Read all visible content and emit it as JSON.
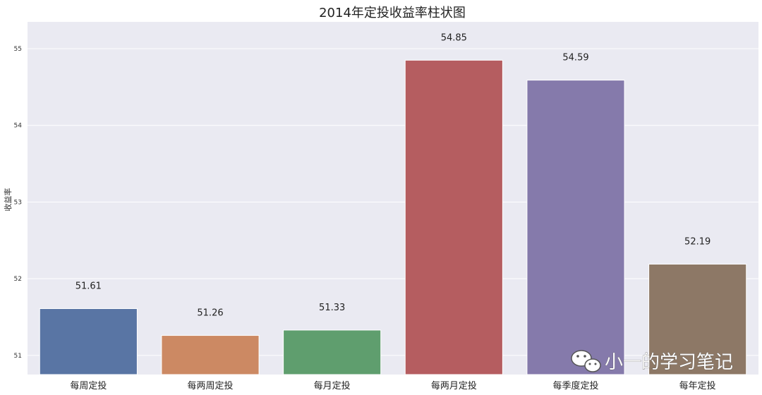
{
  "chart_data": {
    "type": "bar",
    "title": "2014年定投收益率柱状图",
    "xlabel": "",
    "ylabel": "收益率",
    "categories": [
      "每周定投",
      "每两周定投",
      "每月定投",
      "每两月定投",
      "每季度定投",
      "每年定投"
    ],
    "values": [
      51.61,
      51.26,
      51.33,
      54.85,
      54.59,
      52.19
    ],
    "data_labels": [
      "51.61",
      "51.26",
      "51.33",
      "54.85",
      "54.59",
      "52.19"
    ],
    "colors": [
      "#5975a4",
      "#cc8963",
      "#5f9e6e",
      "#b55d60",
      "#857aab",
      "#8d7866"
    ],
    "ylim": [
      50.75,
      55.35
    ],
    "yticks": [
      51,
      52,
      53,
      54,
      55
    ],
    "grid": true,
    "legend": "none",
    "plot_background": "#eaeaf2"
  },
  "watermark": {
    "text": "小一的学习笔记",
    "icon": "wechat-icon"
  }
}
